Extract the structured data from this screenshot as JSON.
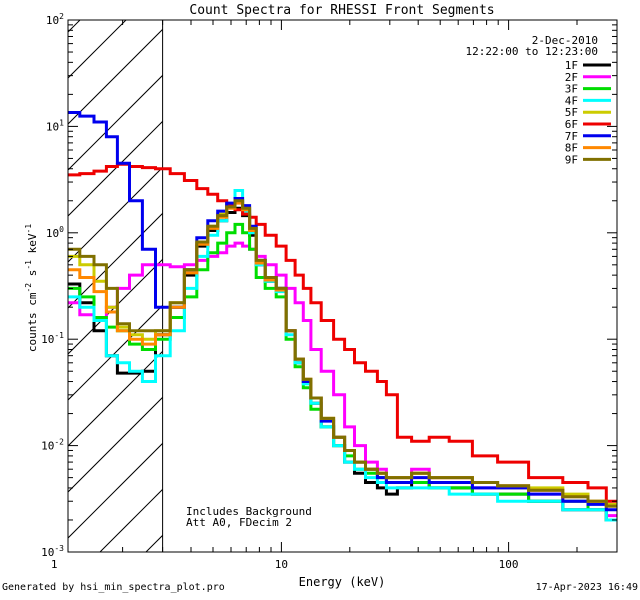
{
  "chart_data": {
    "type": "line",
    "title": "Count Spectra for RHESSI Front Segments",
    "xlabel": "Energy (keV)",
    "ylabel": "counts cm^-2 s^-1 keV^-1",
    "xscale": "log",
    "yscale": "log",
    "xlim": [
      1.15,
      300
    ],
    "ylim": [
      0.001,
      100
    ],
    "x_ticks": [
      {
        "value": 1,
        "label": "1"
      },
      {
        "value": 10,
        "label": "10"
      },
      {
        "value": 100,
        "label": "100"
      }
    ],
    "y_ticks": [
      {
        "value": 0.001,
        "base": "10",
        "exp": "-3"
      },
      {
        "value": 0.01,
        "base": "10",
        "exp": "-2"
      },
      {
        "value": 0.1,
        "base": "10",
        "exp": "-1"
      },
      {
        "value": 1,
        "base": "10",
        "exp": "0"
      },
      {
        "value": 10,
        "base": "10",
        "exp": "1"
      },
      {
        "value": 100,
        "base": "10",
        "exp": "2"
      }
    ],
    "legend_position": "top-right",
    "date": "2-Dec-2010",
    "time_range": "12:22:00 to 12:23:00",
    "shaded_region": {
      "x_from": 1.15,
      "x_to": 3.0,
      "pattern": "diagonal-hatch"
    },
    "annotations": [
      "Includes Background",
      "Att A0, FDecim 2"
    ],
    "series": [
      {
        "name": "1F",
        "color": "#000000",
        "x": [
          1.2,
          1.4,
          1.6,
          1.8,
          2.0,
          2.3,
          2.6,
          3.0,
          3.5,
          4.0,
          4.5,
          5.0,
          5.5,
          6.0,
          6.5,
          7.0,
          7.5,
          8.0,
          9.0,
          10.0,
          11.0,
          12.0,
          13.0,
          14.0,
          16.0,
          18.0,
          20.0,
          22.0,
          25.0,
          28.0,
          30.0,
          35.0,
          40.0,
          50.0,
          60.0,
          80.0,
          100.0,
          150.0,
          200.0,
          250.0,
          290.0
        ],
        "values": [
          0.33,
          0.22,
          0.12,
          0.07,
          0.048,
          0.048,
          0.05,
          0.11,
          0.2,
          0.4,
          0.75,
          1.05,
          1.3,
          1.55,
          1.7,
          1.45,
          0.95,
          0.5,
          0.35,
          0.3,
          0.12,
          0.06,
          0.04,
          0.025,
          0.015,
          0.01,
          0.007,
          0.0055,
          0.0045,
          0.004,
          0.0035,
          0.004,
          0.0045,
          0.004,
          0.004,
          0.0035,
          0.0035,
          0.003,
          0.0025,
          0.0025,
          0.002
        ]
      },
      {
        "name": "2F",
        "color": "#ff00ff",
        "x": [
          1.2,
          1.4,
          1.6,
          1.8,
          2.0,
          2.3,
          2.6,
          3.0,
          3.5,
          4.0,
          4.5,
          5.0,
          5.5,
          6.0,
          6.5,
          7.0,
          7.5,
          8.0,
          9.0,
          10.0,
          11.0,
          12.0,
          13.0,
          14.0,
          16.0,
          18.0,
          20.0,
          22.0,
          25.0,
          28.0,
          30.0,
          35.0,
          40.0,
          50.0,
          60.0,
          80.0,
          100.0,
          150.0,
          200.0,
          250.0,
          290.0
        ],
        "values": [
          0.22,
          0.17,
          0.16,
          0.2,
          0.3,
          0.4,
          0.5,
          0.5,
          0.48,
          0.5,
          0.55,
          0.6,
          0.65,
          0.75,
          0.8,
          0.75,
          0.7,
          0.6,
          0.5,
          0.4,
          0.3,
          0.22,
          0.15,
          0.08,
          0.05,
          0.03,
          0.015,
          0.01,
          0.007,
          0.006,
          0.005,
          0.005,
          0.006,
          0.005,
          0.005,
          0.004,
          0.004,
          0.0035,
          0.003,
          0.0025,
          0.0022
        ]
      },
      {
        "name": "3F",
        "color": "#00dd00",
        "x": [
          1.2,
          1.4,
          1.6,
          1.8,
          2.0,
          2.3,
          2.6,
          3.0,
          3.5,
          4.0,
          4.5,
          5.0,
          5.5,
          6.0,
          6.5,
          7.0,
          7.5,
          8.0,
          9.0,
          10.0,
          11.0,
          12.0,
          13.0,
          14.0,
          16.0,
          18.0,
          20.0,
          22.0,
          25.0,
          28.0,
          30.0,
          35.0,
          40.0,
          50.0,
          60.0,
          80.0,
          100.0,
          150.0,
          200.0,
          250.0,
          290.0
        ],
        "values": [
          0.3,
          0.25,
          0.16,
          0.13,
          0.12,
          0.09,
          0.08,
          0.1,
          0.16,
          0.25,
          0.45,
          0.65,
          0.8,
          1.0,
          1.2,
          1.0,
          0.7,
          0.38,
          0.3,
          0.25,
          0.1,
          0.055,
          0.035,
          0.022,
          0.015,
          0.01,
          0.008,
          0.006,
          0.0055,
          0.005,
          0.0045,
          0.0045,
          0.0045,
          0.004,
          0.004,
          0.0035,
          0.0035,
          0.003,
          0.003,
          0.0025,
          0.002
        ]
      },
      {
        "name": "4F",
        "color": "#00ffff",
        "x": [
          1.2,
          1.4,
          1.6,
          1.8,
          2.0,
          2.3,
          2.6,
          3.0,
          3.5,
          4.0,
          4.5,
          5.0,
          5.5,
          6.0,
          6.5,
          7.0,
          7.5,
          8.0,
          9.0,
          10.0,
          11.0,
          12.0,
          13.0,
          14.0,
          16.0,
          18.0,
          20.0,
          22.0,
          25.0,
          28.0,
          30.0,
          35.0,
          40.0,
          50.0,
          60.0,
          80.0,
          100.0,
          150.0,
          200.0,
          250.0,
          290.0
        ],
        "values": [
          0.25,
          0.2,
          0.15,
          0.07,
          0.06,
          0.05,
          0.04,
          0.07,
          0.12,
          0.3,
          0.6,
          0.95,
          1.3,
          1.8,
          2.5,
          1.6,
          1.0,
          0.5,
          0.35,
          0.28,
          0.11,
          0.06,
          0.038,
          0.025,
          0.015,
          0.01,
          0.007,
          0.006,
          0.005,
          0.0045,
          0.004,
          0.004,
          0.004,
          0.004,
          0.0035,
          0.0035,
          0.003,
          0.003,
          0.0025,
          0.0025,
          0.002
        ]
      },
      {
        "name": "5F",
        "color": "#cccc00",
        "x": [
          1.2,
          1.4,
          1.6,
          1.8,
          2.0,
          2.3,
          2.6,
          3.0,
          3.5,
          4.0,
          4.5,
          5.0,
          5.5,
          6.0,
          6.5,
          7.0,
          7.5,
          8.0,
          9.0,
          10.0,
          11.0,
          12.0,
          13.0,
          14.0,
          16.0,
          18.0,
          20.0,
          22.0,
          25.0,
          28.0,
          30.0,
          35.0,
          40.0,
          50.0,
          60.0,
          80.0,
          100.0,
          150.0,
          200.0,
          250.0,
          290.0
        ],
        "values": [
          0.6,
          0.5,
          0.35,
          0.2,
          0.13,
          0.11,
          0.1,
          0.12,
          0.22,
          0.45,
          0.8,
          1.15,
          1.5,
          1.75,
          2.0,
          1.7,
          1.1,
          0.55,
          0.38,
          0.3,
          0.12,
          0.065,
          0.04,
          0.028,
          0.018,
          0.012,
          0.009,
          0.007,
          0.006,
          0.0055,
          0.005,
          0.005,
          0.0055,
          0.005,
          0.005,
          0.0045,
          0.004,
          0.004,
          0.0035,
          0.003,
          0.0028
        ]
      },
      {
        "name": "6F",
        "color": "#ee0000",
        "x": [
          1.2,
          1.4,
          1.6,
          1.8,
          2.0,
          2.3,
          2.6,
          3.0,
          3.5,
          4.0,
          4.5,
          5.0,
          5.5,
          6.0,
          6.5,
          7.0,
          7.5,
          8.0,
          9.0,
          10.0,
          11.0,
          12.0,
          13.0,
          14.0,
          16.0,
          18.0,
          20.0,
          22.0,
          25.0,
          28.0,
          30.0,
          35.0,
          40.0,
          50.0,
          60.0,
          80.0,
          100.0,
          150.0,
          200.0,
          250.0,
          290.0
        ],
        "values": [
          3.5,
          3.6,
          3.8,
          4.2,
          4.4,
          4.2,
          4.1,
          4.0,
          3.6,
          3.1,
          2.6,
          2.3,
          2.0,
          1.8,
          1.65,
          1.5,
          1.4,
          1.2,
          0.95,
          0.75,
          0.55,
          0.4,
          0.3,
          0.22,
          0.15,
          0.1,
          0.08,
          0.06,
          0.05,
          0.04,
          0.03,
          0.012,
          0.011,
          0.012,
          0.011,
          0.008,
          0.007,
          0.005,
          0.0045,
          0.004,
          0.003
        ]
      },
      {
        "name": "7F",
        "color": "#0000ee",
        "x": [
          1.2,
          1.4,
          1.6,
          1.8,
          2.0,
          2.3,
          2.6,
          3.0,
          3.5,
          4.0,
          4.5,
          5.0,
          5.5,
          6.0,
          6.5,
          7.0,
          7.5,
          8.0,
          9.0,
          10.0,
          11.0,
          12.0,
          13.0,
          14.0,
          16.0,
          18.0,
          20.0,
          22.0,
          25.0,
          28.0,
          30.0,
          35.0,
          40.0,
          50.0,
          60.0,
          80.0,
          100.0,
          150.0,
          200.0,
          250.0,
          290.0
        ],
        "values": [
          13.5,
          12.5,
          11.0,
          8.0,
          4.5,
          2.0,
          0.7,
          0.2,
          0.2,
          0.45,
          0.9,
          1.3,
          1.6,
          1.9,
          2.1,
          1.8,
          1.15,
          0.55,
          0.38,
          0.3,
          0.12,
          0.065,
          0.04,
          0.028,
          0.017,
          0.012,
          0.009,
          0.007,
          0.006,
          0.005,
          0.0045,
          0.0045,
          0.005,
          0.0045,
          0.0045,
          0.004,
          0.004,
          0.0035,
          0.003,
          0.0028,
          0.0025
        ]
      },
      {
        "name": "8F",
        "color": "#ff8800",
        "x": [
          1.2,
          1.4,
          1.6,
          1.8,
          2.0,
          2.3,
          2.6,
          3.0,
          3.5,
          4.0,
          4.5,
          5.0,
          5.5,
          6.0,
          6.5,
          7.0,
          7.5,
          8.0,
          9.0,
          10.0,
          11.0,
          12.0,
          13.0,
          14.0,
          16.0,
          18.0,
          20.0,
          22.0,
          25.0,
          28.0,
          30.0,
          35.0,
          40.0,
          50.0,
          60.0,
          80.0,
          100.0,
          150.0,
          200.0,
          250.0,
          290.0
        ],
        "values": [
          0.45,
          0.38,
          0.28,
          0.18,
          0.12,
          0.1,
          0.09,
          0.11,
          0.2,
          0.42,
          0.78,
          1.1,
          1.4,
          1.7,
          1.9,
          1.65,
          1.05,
          0.52,
          0.36,
          0.29,
          0.12,
          0.065,
          0.042,
          0.028,
          0.018,
          0.012,
          0.009,
          0.007,
          0.006,
          0.0055,
          0.005,
          0.005,
          0.0055,
          0.005,
          0.005,
          0.0045,
          0.0042,
          0.0038,
          0.0033,
          0.003,
          0.0027
        ]
      },
      {
        "name": "9F",
        "color": "#807000",
        "x": [
          1.2,
          1.4,
          1.6,
          1.8,
          2.0,
          2.3,
          2.6,
          3.0,
          3.5,
          4.0,
          4.5,
          5.0,
          5.5,
          6.0,
          6.5,
          7.0,
          7.5,
          8.0,
          9.0,
          10.0,
          11.0,
          12.0,
          13.0,
          14.0,
          16.0,
          18.0,
          20.0,
          22.0,
          25.0,
          28.0,
          30.0,
          35.0,
          40.0,
          50.0,
          60.0,
          80.0,
          100.0,
          150.0,
          200.0,
          250.0,
          290.0
        ],
        "values": [
          0.7,
          0.6,
          0.5,
          0.3,
          0.14,
          0.12,
          0.12,
          0.12,
          0.22,
          0.45,
          0.82,
          1.15,
          1.45,
          1.75,
          2.0,
          1.7,
          1.1,
          0.55,
          0.38,
          0.3,
          0.12,
          0.065,
          0.042,
          0.028,
          0.018,
          0.012,
          0.009,
          0.007,
          0.006,
          0.0055,
          0.005,
          0.005,
          0.0055,
          0.005,
          0.005,
          0.0045,
          0.0042,
          0.0038,
          0.0033,
          0.003,
          0.0027
        ]
      }
    ]
  },
  "footer": {
    "generated_by": "Generated by hsi_min_spectra_plot.pro",
    "timestamp": "17-Apr-2023 16:49"
  }
}
